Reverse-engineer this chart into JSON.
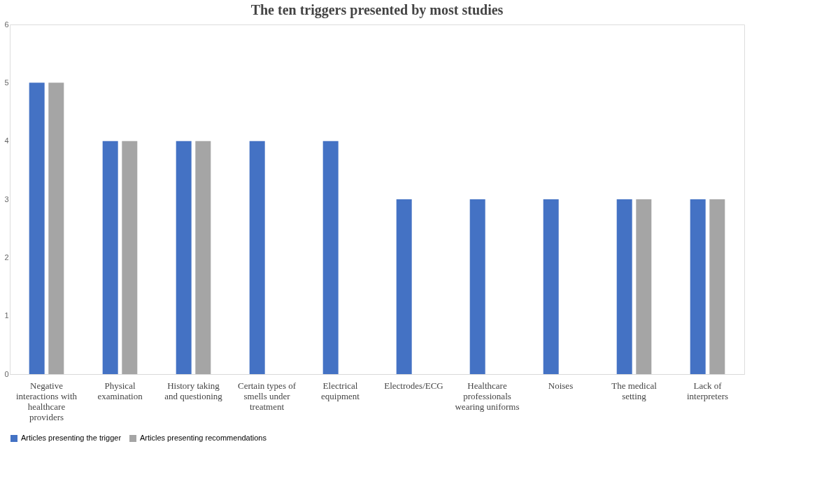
{
  "chart_data": {
    "type": "bar",
    "title": "The ten triggers presented by most studies",
    "categories": [
      "Negative interactions with healthcare providers",
      "Physical examination",
      "History taking and questioning",
      "Certain types of smells under treatment",
      "Electrical equipment",
      "Electrodes/ECG",
      "Healthcare professionals wearing uniforms",
      "Noises",
      "The medical setting",
      "Lack of interpreters"
    ],
    "series": [
      {
        "name": "Articles presenting the trigger",
        "color": "#4472c4",
        "values": [
          5,
          4,
          4,
          4,
          4,
          3,
          3,
          3,
          3,
          3
        ]
      },
      {
        "name": "Articles presenting recommendations",
        "color": "#a5a5a5",
        "values": [
          5,
          4,
          4,
          null,
          null,
          null,
          null,
          null,
          3,
          3
        ]
      }
    ],
    "ylim": [
      0,
      6
    ],
    "yticks": [
      0,
      1,
      2,
      3,
      4,
      5,
      6
    ],
    "grid": false,
    "legend": "bottom"
  }
}
